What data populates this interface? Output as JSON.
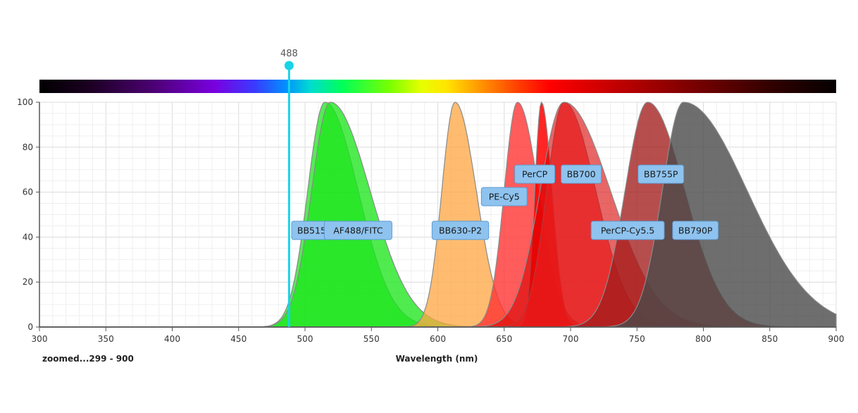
{
  "chart_data": {
    "type": "area",
    "title": "",
    "xlabel": "Wavelength (nm)",
    "ylabel": "",
    "xlim": [
      300,
      900
    ],
    "ylim": [
      0,
      100
    ],
    "x_ticks": [
      "300",
      "350",
      "400",
      "450",
      "500",
      "550",
      "600",
      "650",
      "700",
      "750",
      "800",
      "850",
      "900"
    ],
    "y_ticks": [
      "0",
      "20",
      "40",
      "60",
      "80",
      "100"
    ],
    "grid": true,
    "zoom_label": "zoomed...299 - 900",
    "laser": {
      "label": "488",
      "wavelength": 488,
      "color": "#19d3e6"
    },
    "spectrum_bar": true,
    "series": [
      {
        "name": "BB515",
        "peak": 515,
        "width_left": 13,
        "width_right": 25,
        "color": "#26e626",
        "opacity": 0.78,
        "label_x": 505,
        "label_y": 43
      },
      {
        "name": "AF488/FITC",
        "peak": 519,
        "width_left": 14,
        "width_right": 30,
        "color": "#1ee61e",
        "opacity": 0.78,
        "label_x": 540,
        "label_y": 43
      },
      {
        "name": "BB630-P2",
        "peak": 613,
        "width_left": 10,
        "width_right": 16,
        "color": "#ffa640",
        "opacity": 0.75,
        "label_x": 617,
        "label_y": 43
      },
      {
        "name": "PE-Cy5",
        "peak": 660,
        "width_left": 10,
        "width_right": 16,
        "color": "#ff3333",
        "opacity": 0.8,
        "label_x": 650,
        "label_y": 58
      },
      {
        "name": "PerCP",
        "peak": 678,
        "width_left": 5,
        "width_right": 8,
        "color": "#ff0000",
        "opacity": 0.85,
        "label_x": 673,
        "label_y": 68
      },
      {
        "name": "BB700",
        "peak": 695,
        "width_left": 13,
        "width_right": 24,
        "color": "#ff4a4a",
        "opacity": 0.75,
        "label_x": 708,
        "label_y": 68
      },
      {
        "name": "PerCP-Cy5.5",
        "peak": 695,
        "width_left": 18,
        "width_right": 35,
        "color": "#d90000",
        "opacity": 0.6,
        "label_x": 743,
        "label_y": 43
      },
      {
        "name": "BB755P",
        "peak": 758,
        "width_left": 17,
        "width_right": 28,
        "color": "#a31c1c",
        "opacity": 0.78,
        "label_x": 768,
        "label_y": 68
      },
      {
        "name": "BB790P",
        "peak": 785,
        "width_left": 16,
        "width_right": 48,
        "color": "#4a4a4a",
        "opacity": 0.8,
        "label_x": 794,
        "label_y": 43
      }
    ]
  }
}
